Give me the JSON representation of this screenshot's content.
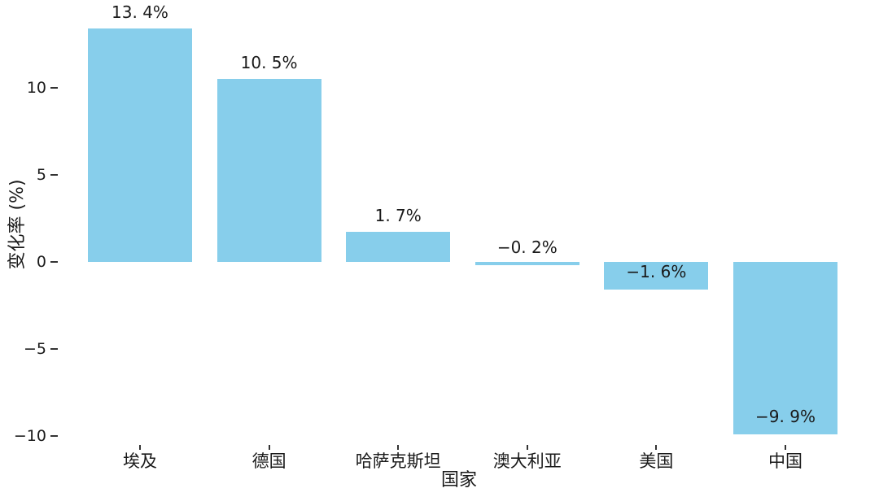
{
  "chart_data": {
    "type": "bar",
    "title": "",
    "xlabel": "国家",
    "ylabel": "变化率 (%)",
    "categories": [
      "埃及",
      "德国",
      "哈萨克斯坦",
      "澳大利亚",
      "美国",
      "中国"
    ],
    "values": [
      13.4,
      10.5,
      1.7,
      -0.2,
      -1.6,
      -9.9
    ],
    "bar_labels": [
      "13. 4%",
      "10. 5%",
      "1. 7%",
      "−0. 2%",
      "−1. 6%",
      "−9. 9%"
    ],
    "yticks": [
      {
        "value": 10,
        "label": "10"
      },
      {
        "value": 5,
        "label": "5"
      },
      {
        "value": 0,
        "label": "0"
      },
      {
        "value": -5,
        "label": "−5"
      },
      {
        "value": -10,
        "label": "−10"
      }
    ],
    "ylim": [
      -10.8,
      14.5
    ],
    "grid": false,
    "legend": false,
    "bar_color": "#87CEEB",
    "text_color": "#1a1a1a",
    "tick_color": "#333333",
    "background": "#ffffff"
  }
}
